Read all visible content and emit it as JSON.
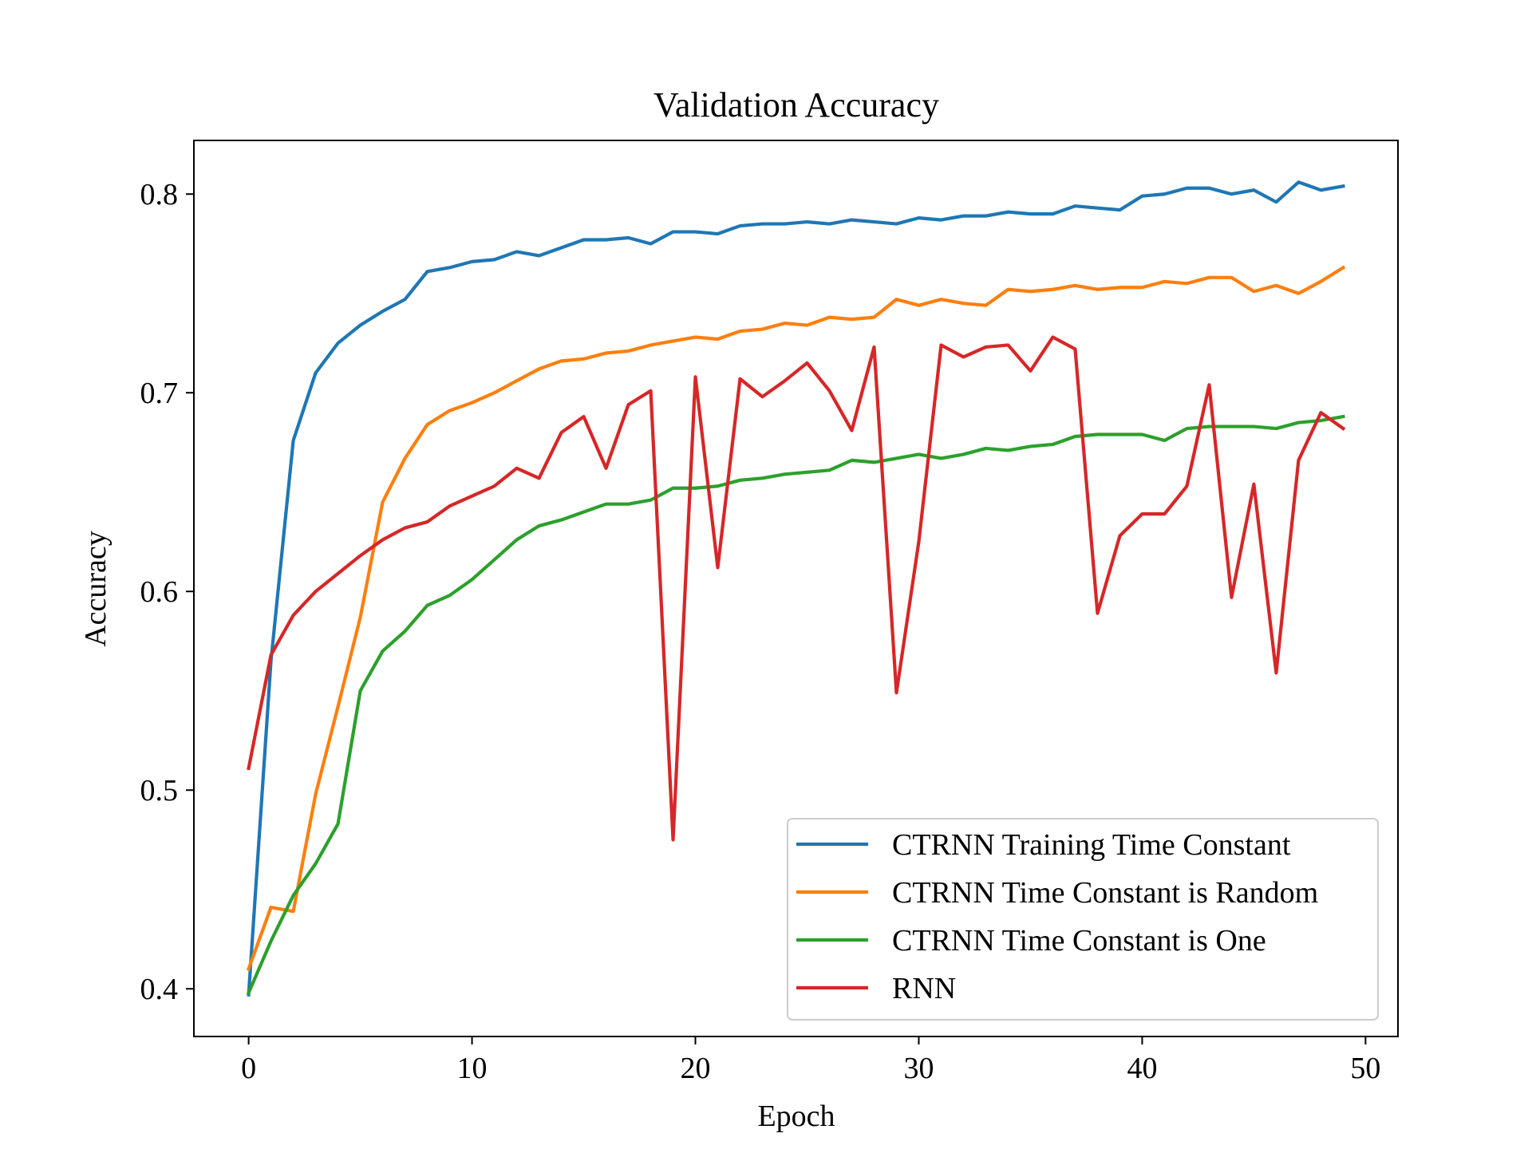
{
  "chart_data": {
    "type": "line",
    "title": "Validation Accuracy",
    "xlabel": "Epoch",
    "ylabel": "Accuracy",
    "xlim": [
      -2.45,
      51.45
    ],
    "ylim": [
      0.376,
      0.827
    ],
    "xticks": [
      0,
      10,
      20,
      30,
      40,
      50
    ],
    "xtick_labels": [
      "0",
      "10",
      "20",
      "30",
      "40",
      "50"
    ],
    "yticks": [
      0.4,
      0.5,
      0.6,
      0.7,
      0.8
    ],
    "ytick_labels": [
      "0.4",
      "0.5",
      "0.6",
      "0.7",
      "0.8"
    ],
    "grid": false,
    "legend_position": "bottom-right",
    "x": [
      0,
      1,
      2,
      3,
      4,
      5,
      6,
      7,
      8,
      9,
      10,
      11,
      12,
      13,
      14,
      15,
      16,
      17,
      18,
      19,
      20,
      21,
      22,
      23,
      24,
      25,
      26,
      27,
      28,
      29,
      30,
      31,
      32,
      33,
      34,
      35,
      36,
      37,
      38,
      39,
      40,
      41,
      42,
      43,
      44,
      45,
      46,
      47,
      48,
      49
    ],
    "series": [
      {
        "name": "CTRNN Training Time Constant",
        "color": "#1f77b4",
        "values": [
          0.397,
          0.565,
          0.676,
          0.71,
          0.725,
          0.734,
          0.741,
          0.747,
          0.761,
          0.763,
          0.766,
          0.767,
          0.771,
          0.769,
          0.773,
          0.777,
          0.777,
          0.778,
          0.775,
          0.781,
          0.781,
          0.78,
          0.784,
          0.785,
          0.785,
          0.786,
          0.785,
          0.787,
          0.786,
          0.785,
          0.788,
          0.787,
          0.789,
          0.789,
          0.791,
          0.79,
          0.79,
          0.794,
          0.793,
          0.792,
          0.799,
          0.8,
          0.803,
          0.803,
          0.8,
          0.802,
          0.796,
          0.806,
          0.802,
          0.804
        ]
      },
      {
        "name": "CTRNN Time Constant is Random",
        "color": "#ff7f0e",
        "values": [
          0.41,
          0.441,
          0.439,
          0.498,
          0.542,
          0.587,
          0.645,
          0.667,
          0.684,
          0.691,
          0.695,
          0.7,
          0.706,
          0.712,
          0.716,
          0.717,
          0.72,
          0.721,
          0.724,
          0.726,
          0.728,
          0.727,
          0.731,
          0.732,
          0.735,
          0.734,
          0.738,
          0.737,
          0.738,
          0.747,
          0.744,
          0.747,
          0.745,
          0.744,
          0.752,
          0.751,
          0.752,
          0.754,
          0.752,
          0.753,
          0.753,
          0.756,
          0.755,
          0.758,
          0.758,
          0.751,
          0.754,
          0.75,
          0.756,
          0.763
        ]
      },
      {
        "name": "CTRNN Time Constant is One",
        "color": "#2ca02c",
        "values": [
          0.398,
          0.424,
          0.447,
          0.463,
          0.483,
          0.55,
          0.57,
          0.58,
          0.593,
          0.598,
          0.606,
          0.616,
          0.626,
          0.633,
          0.636,
          0.64,
          0.644,
          0.644,
          0.646,
          0.652,
          0.652,
          0.653,
          0.656,
          0.657,
          0.659,
          0.66,
          0.661,
          0.666,
          0.665,
          0.667,
          0.669,
          0.667,
          0.669,
          0.672,
          0.671,
          0.673,
          0.674,
          0.678,
          0.679,
          0.679,
          0.679,
          0.676,
          0.682,
          0.683,
          0.683,
          0.683,
          0.682,
          0.685,
          0.686,
          0.688
        ]
      },
      {
        "name": "RNN",
        "color": "#d62728",
        "values": [
          0.511,
          0.568,
          0.588,
          0.6,
          0.609,
          0.618,
          0.626,
          0.632,
          0.635,
          0.643,
          0.648,
          0.653,
          0.662,
          0.657,
          0.68,
          0.688,
          0.662,
          0.694,
          0.701,
          0.475,
          0.708,
          0.612,
          0.707,
          0.698,
          0.706,
          0.715,
          0.701,
          0.681,
          0.723,
          0.549,
          0.625,
          0.724,
          0.718,
          0.723,
          0.724,
          0.711,
          0.728,
          0.722,
          0.589,
          0.628,
          0.639,
          0.639,
          0.653,
          0.704,
          0.597,
          0.654,
          0.559,
          0.666,
          0.69,
          0.682
        ]
      }
    ]
  }
}
